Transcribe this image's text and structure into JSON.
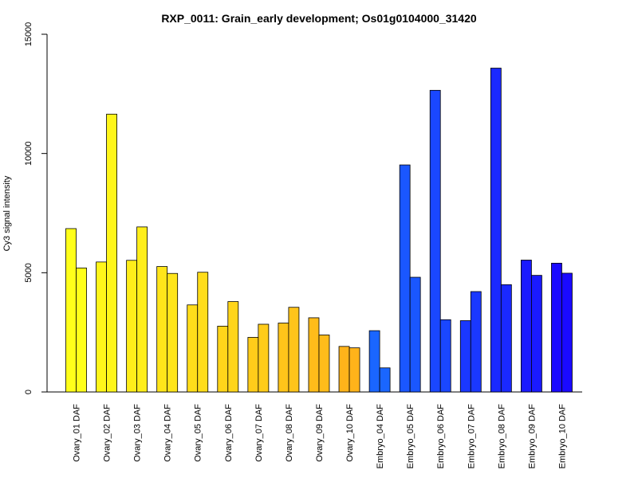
{
  "chart_data": {
    "type": "bar",
    "title": "RXP_0011: Grain_early development; Os01g0104000_31420",
    "xlabel": "",
    "ylabel": "Cy3 signal intensity",
    "ylim": [
      0,
      15000
    ],
    "yticks": [
      0,
      5000,
      10000,
      15000
    ],
    "grid": false,
    "categories": [
      "Ovary_01 DAF",
      "Ovary_02 DAF",
      "Ovary_03 DAF",
      "Ovary_04 DAF",
      "Ovary_05 DAF",
      "Ovary_06 DAF",
      "Ovary_07 DAF",
      "Ovary_08 DAF",
      "Ovary_09 DAF",
      "Ovary_10 DAF",
      "Embryo_04 DAF",
      "Embryo_05 DAF",
      "Embryo_06 DAF",
      "Embryo_07 DAF",
      "Embryo_08 DAF",
      "Embryo_09 DAF",
      "Embryo_10 DAF"
    ],
    "series": [
      {
        "values": [
          6850,
          5450,
          5520,
          5260,
          3650,
          2760,
          2290,
          2890,
          3110,
          1910,
          2570,
          9520,
          12650,
          2990,
          13580,
          5530,
          5400
        ]
      },
      {
        "values": [
          5200,
          11650,
          6920,
          4970,
          5020,
          3790,
          2840,
          3550,
          2390,
          1850,
          1010,
          4810,
          3030,
          4210,
          4500,
          4890,
          4980
        ]
      }
    ],
    "colors": [
      "#FFFF1A",
      "#FFF61A",
      "#FFEE1A",
      "#FFE51A",
      "#FFDD1A",
      "#FFD51A",
      "#FFCC1A",
      "#FFC41A",
      "#FFBC1A",
      "#FFB31A",
      "#1A66FF",
      "#1A57FF",
      "#1A47FF",
      "#1A38FF",
      "#1A29FF",
      "#1A1AFF",
      "#1A0AFF"
    ]
  }
}
